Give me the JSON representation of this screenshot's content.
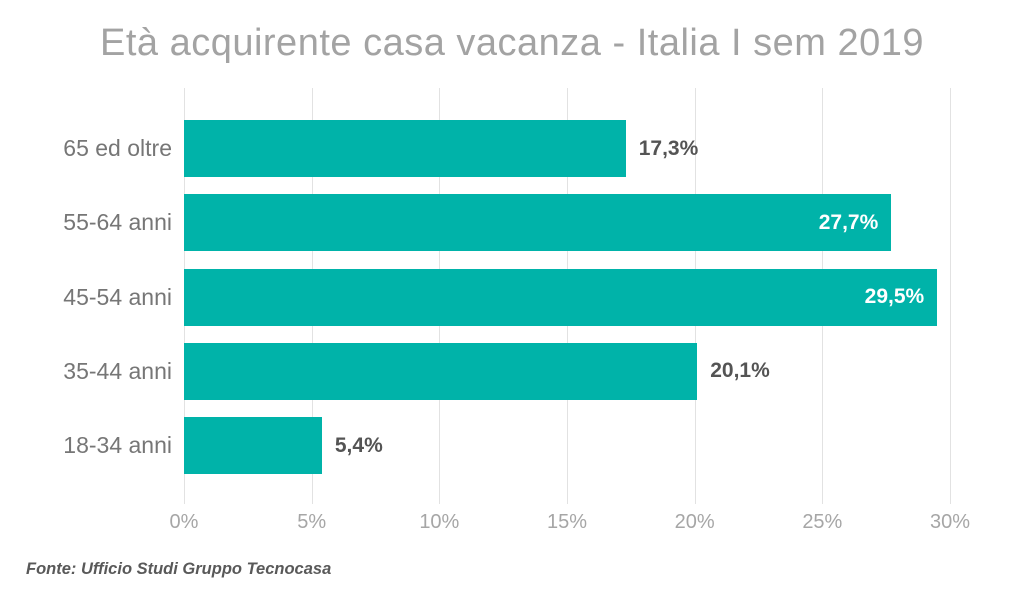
{
  "chart_data": {
    "type": "bar",
    "orientation": "horizontal",
    "title": "Età acquirente casa vacanza - Italia I sem 2019",
    "categories": [
      "65 ed oltre",
      "55-64 anni",
      "45-54 anni",
      "35-44 anni",
      "18-34 anni"
    ],
    "values": [
      17.3,
      27.7,
      29.5,
      20.1,
      5.4
    ],
    "value_labels": [
      "17,3%",
      "27,7%",
      "29,5%",
      "20,1%",
      "5,4%"
    ],
    "label_positions": [
      "outside",
      "inside",
      "inside",
      "outside",
      "outside"
    ],
    "x_ticks": [
      "0%",
      "5%",
      "10%",
      "15%",
      "20%",
      "25%",
      "30%"
    ],
    "xlim": [
      0,
      30
    ],
    "grid": true,
    "legend": false,
    "source": "Fonte: Ufficio Studi Gruppo Tecnocasa",
    "colors": {
      "bar": "#00b3a9",
      "title": "#a3a3a3",
      "category_label": "#767676",
      "tick_label": "#a6a6a6",
      "data_label_outside": "#545454",
      "data_label_inside": "#ffffff",
      "gridline": "#e2e2e2",
      "source_text": "#595959",
      "background": "#ffffff"
    }
  }
}
